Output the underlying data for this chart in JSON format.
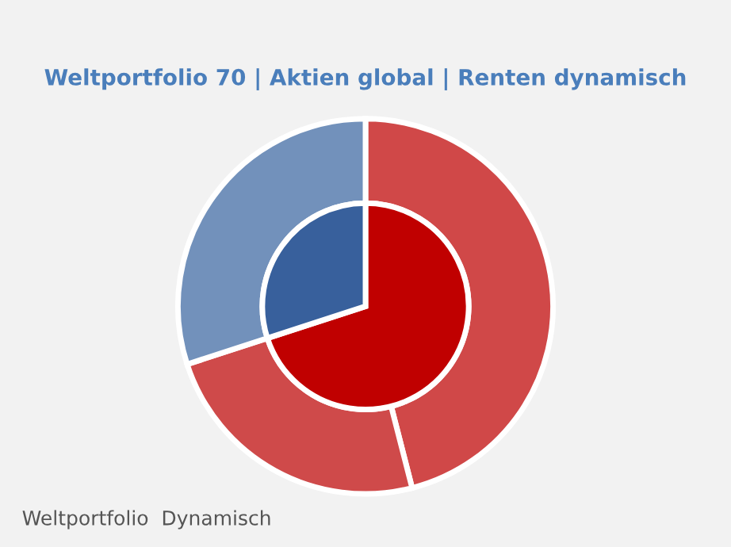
{
  "chart_data": {
    "type": "donut",
    "title": "Weltportfolio 70 | Aktien global | Renten dynamisch",
    "annotations": [
      "Weltportfolio  Dynamisch"
    ],
    "series": [
      {
        "values": [
          46,
          24,
          30
        ],
        "colors": [
          "#d04848",
          "#cf4a4a",
          "#7291bb"
        ]
      },
      {
        "values": [
          70,
          30
        ],
        "colors": [
          "#c00000",
          "#38609c"
        ]
      }
    ]
  }
}
